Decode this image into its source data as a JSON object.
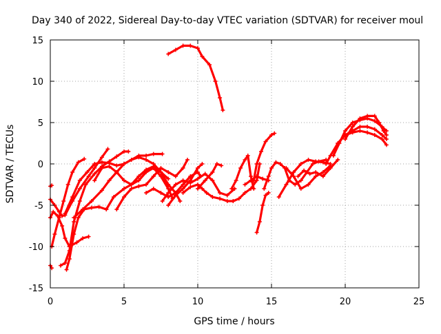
{
  "chart_data": {
    "type": "scatter",
    "title": "Day 340 of 2022, Sidereal Day-to-day VTEC variation (SDTVAR) for receiver moul",
    "xlabel": "GPS time / hours",
    "ylabel": "SDTVAR / TECUs",
    "xlim": [
      0,
      25
    ],
    "ylim": [
      -15,
      15
    ],
    "xticks": [
      0,
      5,
      10,
      15,
      20,
      25
    ],
    "yticks": [
      -15,
      -10,
      -5,
      0,
      5,
      10,
      15
    ],
    "grid": true,
    "marker": "plus",
    "color": "#ff0000",
    "series": [
      {
        "name": "s1",
        "points": [
          [
            0,
            -12.3
          ],
          [
            0.1,
            -12.6
          ]
        ]
      },
      {
        "name": "s2",
        "points": [
          [
            0,
            -2.7
          ],
          [
            0.1,
            -2.6
          ]
        ]
      },
      {
        "name": "s3",
        "points": [
          [
            0,
            -6.5
          ],
          [
            0.2,
            -5.8
          ],
          [
            0.5,
            -6.3
          ],
          [
            0.8,
            -7.5
          ],
          [
            1.0,
            -9.0
          ],
          [
            1.3,
            -10.0
          ],
          [
            1.8,
            -9.5
          ],
          [
            2.2,
            -9.0
          ],
          [
            2.6,
            -8.8
          ]
        ]
      },
      {
        "name": "s4",
        "points": [
          [
            0.1,
            -10.0
          ],
          [
            0.3,
            -8.5
          ],
          [
            0.6,
            -6.5
          ],
          [
            0.9,
            -4.5
          ],
          [
            1.2,
            -2.5
          ],
          [
            1.5,
            -1.0
          ],
          [
            1.9,
            0.2
          ],
          [
            2.3,
            0.6
          ]
        ]
      },
      {
        "name": "s5",
        "points": [
          [
            0,
            -4.3
          ],
          [
            0.3,
            -5.0
          ],
          [
            0.6,
            -5.8
          ],
          [
            0.8,
            -6.3
          ],
          [
            1.0,
            -6.2
          ],
          [
            1.5,
            -4.5
          ],
          [
            2.0,
            -3.0
          ],
          [
            2.6,
            -1.5
          ],
          [
            3.0,
            -0.5
          ],
          [
            3.5,
            0.8
          ],
          [
            3.9,
            1.8
          ]
        ]
      },
      {
        "name": "s6",
        "points": [
          [
            0.7,
            -12.3
          ],
          [
            1.0,
            -12.0
          ],
          [
            1.3,
            -10.5
          ],
          [
            1.6,
            -7.0
          ],
          [
            2.0,
            -4.5
          ],
          [
            2.4,
            -2.5
          ],
          [
            3.0,
            -1.2
          ],
          [
            3.5,
            -0.3
          ],
          [
            4.0,
            0.3
          ],
          [
            4.5,
            0.9
          ],
          [
            5.0,
            1.5
          ],
          [
            5.3,
            1.5
          ]
        ]
      },
      {
        "name": "s7",
        "points": [
          [
            1.1,
            -12.8
          ],
          [
            1.3,
            -11.5
          ],
          [
            1.6,
            -8.5
          ],
          [
            1.9,
            -6.5
          ],
          [
            2.3,
            -5.5
          ],
          [
            2.8,
            -5.3
          ],
          [
            3.3,
            -5.2
          ],
          [
            3.8,
            -5.5
          ]
        ]
      },
      {
        "name": "s8",
        "points": [
          [
            1.0,
            -6.0
          ],
          [
            1.5,
            -4.0
          ],
          [
            2.0,
            -2.0
          ],
          [
            2.5,
            -1.0
          ],
          [
            3.0,
            0
          ],
          [
            3.5,
            0.2
          ],
          [
            4.0,
            0.1
          ],
          [
            4.5,
            -0.2
          ],
          [
            5.0,
            0
          ],
          [
            5.5,
            0.5
          ],
          [
            6.0,
            1.0
          ],
          [
            6.5,
            1.0
          ],
          [
            7.0,
            1.2
          ],
          [
            7.6,
            1.2
          ]
        ]
      },
      {
        "name": "s9",
        "points": [
          [
            1.6,
            -6.5
          ],
          [
            2.2,
            -5.5
          ],
          [
            2.8,
            -4.5
          ],
          [
            3.5,
            -3.2
          ],
          [
            4.0,
            -2.0
          ],
          [
            4.5,
            -1.0
          ],
          [
            5.0,
            0
          ],
          [
            5.5,
            0.5
          ],
          [
            6.0,
            0.8
          ],
          [
            6.5,
            0.5
          ],
          [
            7.0,
            0
          ],
          [
            7.5,
            -1.0
          ],
          [
            8.0,
            -2.5
          ],
          [
            8.5,
            -3.5
          ],
          [
            8.8,
            -4.5
          ]
        ]
      },
      {
        "name": "s10",
        "points": [
          [
            3.0,
            -2.0
          ],
          [
            3.5,
            -0.5
          ],
          [
            4.0,
            -0.3
          ],
          [
            4.5,
            -1.0
          ],
          [
            5.0,
            -2.0
          ],
          [
            5.5,
            -2.5
          ],
          [
            6.0,
            -2.0
          ],
          [
            6.5,
            -1.0
          ],
          [
            7.0,
            -0.5
          ],
          [
            7.5,
            -1.5
          ],
          [
            8.0,
            -3.0
          ],
          [
            8.3,
            -4.2
          ]
        ]
      },
      {
        "name": "s11",
        "points": [
          [
            3.8,
            -5.5
          ],
          [
            4.3,
            -4.0
          ],
          [
            5.0,
            -3.0
          ],
          [
            5.5,
            -2.5
          ],
          [
            6.0,
            -1.5
          ],
          [
            6.5,
            -0.7
          ],
          [
            7.0,
            -0.3
          ],
          [
            7.5,
            -1.0
          ],
          [
            8.0,
            -1.8
          ]
        ]
      },
      {
        "name": "s12",
        "points": [
          [
            4.5,
            -5.5
          ],
          [
            5.0,
            -4.0
          ],
          [
            5.5,
            -3.0
          ],
          [
            6.0,
            -2.7
          ],
          [
            6.5,
            -2.5
          ],
          [
            7.0,
            -1.5
          ],
          [
            7.5,
            -0.5
          ],
          [
            8.0,
            -1.0
          ],
          [
            8.5,
            -1.5
          ],
          [
            9.0,
            -0.5
          ],
          [
            9.3,
            0.5
          ]
        ]
      },
      {
        "name": "s13",
        "points": [
          [
            6.5,
            -3.5
          ],
          [
            7.0,
            -3.0
          ],
          [
            7.5,
            -3.5
          ],
          [
            8.0,
            -4.0
          ],
          [
            8.5,
            -3.5
          ],
          [
            9.0,
            -2.5
          ],
          [
            9.5,
            -1.5
          ],
          [
            10.0,
            -1.0
          ],
          [
            10.2,
            -1.5
          ]
        ]
      },
      {
        "name": "s14",
        "points": [
          [
            7.6,
            -4.5
          ],
          [
            8.0,
            -3.5
          ],
          [
            8.5,
            -2.5
          ],
          [
            9.0,
            -2.0
          ],
          [
            9.5,
            -2.3
          ],
          [
            10.0,
            -1.8
          ],
          [
            10.5,
            -1.2
          ],
          [
            11.0,
            -2.0
          ],
          [
            11.5,
            -3.5
          ],
          [
            12.0,
            -3.8
          ],
          [
            12.5,
            -3.0
          ]
        ]
      },
      {
        "name": "s15",
        "points": [
          [
            8.0,
            -5.0
          ],
          [
            8.5,
            -3.8
          ],
          [
            9.0,
            -3.0
          ],
          [
            9.5,
            -2.0
          ],
          [
            10.0,
            -0.5
          ],
          [
            10.3,
            0
          ]
        ]
      },
      {
        "name": "s16",
        "points": [
          [
            9.0,
            -3.5
          ],
          [
            9.5,
            -2.8
          ],
          [
            10.0,
            -2.5
          ],
          [
            10.3,
            -3.0
          ],
          [
            10.6,
            -3.5
          ],
          [
            11.0,
            -4.0
          ],
          [
            11.5,
            -4.2
          ],
          [
            12.0,
            -4.5
          ],
          [
            12.4,
            -4.5
          ]
        ]
      },
      {
        "name": "s17",
        "points": [
          [
            10.0,
            -3.0
          ],
          [
            10.5,
            -2.0
          ],
          [
            11.0,
            -1.0
          ],
          [
            11.3,
            0
          ],
          [
            11.6,
            -0.2
          ]
        ]
      },
      {
        "name": "s18",
        "points": [
          [
            8.0,
            13.3
          ],
          [
            8.5,
            13.8
          ],
          [
            9.0,
            14.3
          ],
          [
            9.5,
            14.3
          ],
          [
            10.0,
            14.0
          ],
          [
            10.3,
            13.0
          ],
          [
            10.8,
            12.0
          ],
          [
            11.2,
            10.0
          ],
          [
            11.5,
            8.0
          ],
          [
            11.7,
            6.5
          ]
        ]
      },
      {
        "name": "s19",
        "points": [
          [
            12.3,
            -3.0
          ],
          [
            12.6,
            -2.0
          ],
          [
            12.9,
            -0.5
          ],
          [
            13.2,
            0.5
          ],
          [
            13.4,
            1.0
          ],
          [
            13.6,
            -1.5
          ],
          [
            13.8,
            -3.0
          ]
        ]
      },
      {
        "name": "s20",
        "points": [
          [
            12.4,
            -4.5
          ],
          [
            12.8,
            -4.2
          ],
          [
            13.2,
            -3.5
          ],
          [
            13.6,
            -3.0
          ],
          [
            14.0,
            -2.0
          ],
          [
            14.2,
            0
          ]
        ]
      },
      {
        "name": "s21",
        "points": [
          [
            13.2,
            -2.5
          ],
          [
            13.6,
            -2.0
          ],
          [
            14.0,
            -1.5
          ],
          [
            14.4,
            -1.8
          ],
          [
            14.8,
            -2.0
          ]
        ]
      },
      {
        "name": "s22",
        "points": [
          [
            13.8,
            -2.0
          ],
          [
            14.0,
            0
          ],
          [
            14.3,
            1.5
          ],
          [
            14.6,
            2.7
          ],
          [
            15.0,
            3.5
          ],
          [
            15.2,
            3.7
          ]
        ]
      },
      {
        "name": "s23",
        "points": [
          [
            14.0,
            -8.3
          ],
          [
            14.2,
            -7.0
          ],
          [
            14.4,
            -5.0
          ],
          [
            14.6,
            -3.8
          ],
          [
            14.8,
            -3.5
          ]
        ]
      },
      {
        "name": "s24",
        "points": [
          [
            14.5,
            -3.0
          ],
          [
            14.8,
            -1.5
          ],
          [
            15.0,
            -0.5
          ],
          [
            15.3,
            0.2
          ],
          [
            15.6,
            0
          ],
          [
            15.9,
            -0.5
          ],
          [
            16.2,
            -2.0
          ],
          [
            16.6,
            -2.5
          ],
          [
            17.0,
            -2.0
          ],
          [
            17.4,
            -1.0
          ],
          [
            17.8,
            0
          ],
          [
            18.2,
            0.3
          ],
          [
            18.7,
            0.5
          ]
        ]
      },
      {
        "name": "s25",
        "points": [
          [
            15.5,
            -4.0
          ],
          [
            16.0,
            -2.5
          ],
          [
            16.5,
            -1.0
          ],
          [
            17.0,
            0
          ],
          [
            17.5,
            0.5
          ],
          [
            18.0,
            0.3
          ],
          [
            18.5,
            0.2
          ],
          [
            19.0,
            0
          ]
        ]
      },
      {
        "name": "s26",
        "points": [
          [
            16.0,
            -0.5
          ],
          [
            16.5,
            -1.5
          ],
          [
            17.0,
            -3.0
          ],
          [
            17.5,
            -2.5
          ],
          [
            18.0,
            -1.5
          ],
          [
            18.5,
            -1.0
          ],
          [
            19.0,
            -0.2
          ]
        ]
      },
      {
        "name": "s27",
        "points": [
          [
            16.8,
            -1.5
          ],
          [
            17.2,
            -0.8
          ],
          [
            17.6,
            -1.2
          ],
          [
            18.0,
            -1.0
          ],
          [
            18.5,
            -1.5
          ],
          [
            19.0,
            -0.5
          ],
          [
            19.5,
            0.5
          ]
        ]
      },
      {
        "name": "s28",
        "points": [
          [
            18.7,
            0
          ],
          [
            19.0,
            1.0
          ],
          [
            19.5,
            2.5
          ],
          [
            20.0,
            3.5
          ],
          [
            20.5,
            4.0
          ],
          [
            21.0,
            4.5
          ],
          [
            21.5,
            4.5
          ],
          [
            22.0,
            4.2
          ],
          [
            22.5,
            3.5
          ],
          [
            22.8,
            3.0
          ]
        ]
      },
      {
        "name": "s29",
        "points": [
          [
            19.2,
            1.0
          ],
          [
            19.6,
            2.5
          ],
          [
            20.0,
            4.0
          ],
          [
            20.5,
            5.0
          ],
          [
            21.0,
            5.3
          ],
          [
            21.5,
            5.5
          ],
          [
            22.0,
            5.2
          ],
          [
            22.5,
            4.5
          ],
          [
            22.8,
            4.0
          ]
        ]
      },
      {
        "name": "s30",
        "points": [
          [
            19.5,
            2.5
          ],
          [
            20.0,
            3.5
          ],
          [
            20.5,
            3.8
          ],
          [
            21.0,
            4.0
          ],
          [
            21.5,
            3.8
          ],
          [
            22.0,
            3.5
          ],
          [
            22.5,
            3.0
          ],
          [
            22.8,
            2.3
          ]
        ]
      },
      {
        "name": "s31",
        "points": [
          [
            20.0,
            3.0
          ],
          [
            20.5,
            4.5
          ],
          [
            21.0,
            5.5
          ],
          [
            21.5,
            5.8
          ],
          [
            22.0,
            5.8
          ],
          [
            22.3,
            5.0
          ],
          [
            22.6,
            4.0
          ],
          [
            22.8,
            3.5
          ]
        ]
      }
    ]
  }
}
